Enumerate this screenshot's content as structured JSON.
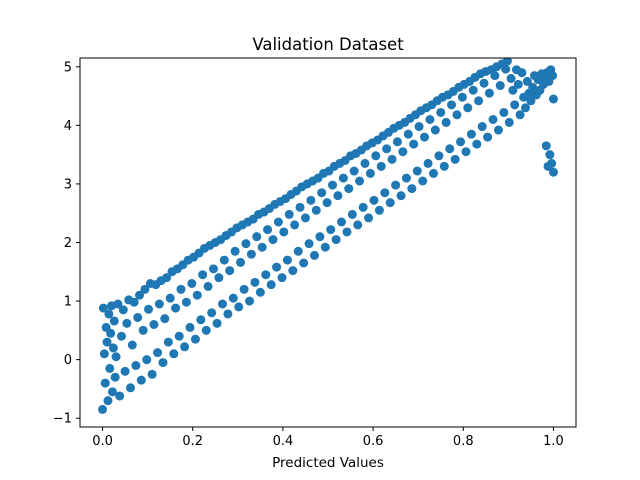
{
  "chart_data": {
    "type": "scatter",
    "title": "Validation Dataset",
    "xlabel": "Predicted Values",
    "ylabel": "",
    "xlim": [
      -0.05,
      1.05
    ],
    "ylim": [
      -1.15,
      5.15
    ],
    "xticks": [
      0.0,
      0.2,
      0.4,
      0.6,
      0.8,
      1.0
    ],
    "xtick_labels": [
      "0.0",
      "0.2",
      "0.4",
      "0.6",
      "0.8",
      "1.0"
    ],
    "yticks": [
      -1,
      0,
      1,
      2,
      3,
      4,
      5
    ],
    "ytick_labels": [
      "−1",
      "0",
      "1",
      "2",
      "3",
      "4",
      "5"
    ],
    "grid": false,
    "legend": "none",
    "series": [
      {
        "color": "#1f77b4",
        "marker": "circle",
        "approx_relation": "y ≈ 4x + noise, noise uniform in [-0.9, 0.9]",
        "approx_count": 2000,
        "points": [
          [
            0.0,
            -0.85
          ],
          [
            0.002,
            0.88
          ],
          [
            0.004,
            0.1
          ],
          [
            0.006,
            -0.4
          ],
          [
            0.008,
            0.55
          ],
          [
            0.01,
            0.3
          ],
          [
            0.012,
            -0.7
          ],
          [
            0.014,
            0.78
          ],
          [
            0.016,
            -0.15
          ],
          [
            0.018,
            0.45
          ],
          [
            0.02,
            0.92
          ],
          [
            0.022,
            -0.55
          ],
          [
            0.024,
            0.2
          ],
          [
            0.026,
            0.66
          ],
          [
            0.028,
            -0.3
          ],
          [
            0.03,
            0.05
          ],
          [
            0.034,
            0.95
          ],
          [
            0.038,
            -0.62
          ],
          [
            0.042,
            0.4
          ],
          [
            0.046,
            0.85
          ],
          [
            0.05,
            -0.2
          ],
          [
            0.054,
            0.62
          ],
          [
            0.058,
            1.02
          ],
          [
            0.062,
            -0.48
          ],
          [
            0.066,
            0.25
          ],
          [
            0.07,
            0.98
          ],
          [
            0.074,
            -0.1
          ],
          [
            0.078,
            0.72
          ],
          [
            0.082,
            1.1
          ],
          [
            0.086,
            -0.35
          ],
          [
            0.09,
            0.5
          ],
          [
            0.094,
            1.2
          ],
          [
            0.098,
            0.0
          ],
          [
            0.102,
            0.86
          ],
          [
            0.106,
            1.3
          ],
          [
            0.11,
            -0.25
          ],
          [
            0.114,
            0.6
          ],
          [
            0.118,
            1.28
          ],
          [
            0.122,
            0.12
          ],
          [
            0.126,
            0.95
          ],
          [
            0.13,
            1.35
          ],
          [
            0.134,
            -0.05
          ],
          [
            0.138,
            0.7
          ],
          [
            0.142,
            1.4
          ],
          [
            0.146,
            0.3
          ],
          [
            0.15,
            1.05
          ],
          [
            0.154,
            1.5
          ],
          [
            0.158,
            0.1
          ],
          [
            0.162,
            0.88
          ],
          [
            0.166,
            1.55
          ],
          [
            0.17,
            0.4
          ],
          [
            0.174,
            1.2
          ],
          [
            0.178,
            1.62
          ],
          [
            0.182,
            0.22
          ],
          [
            0.186,
            0.98
          ],
          [
            0.19,
            1.7
          ],
          [
            0.194,
            0.55
          ],
          [
            0.198,
            1.3
          ],
          [
            0.202,
            1.75
          ],
          [
            0.206,
            0.35
          ],
          [
            0.21,
            1.1
          ],
          [
            0.214,
            1.82
          ],
          [
            0.218,
            0.68
          ],
          [
            0.222,
            1.45
          ],
          [
            0.226,
            1.9
          ],
          [
            0.23,
            0.5
          ],
          [
            0.234,
            1.25
          ],
          [
            0.238,
            1.95
          ],
          [
            0.242,
            0.8
          ],
          [
            0.246,
            1.55
          ],
          [
            0.25,
            2.0
          ],
          [
            0.254,
            0.62
          ],
          [
            0.258,
            1.4
          ],
          [
            0.262,
            2.05
          ],
          [
            0.266,
            0.95
          ],
          [
            0.27,
            1.7
          ],
          [
            0.274,
            2.12
          ],
          [
            0.278,
            0.78
          ],
          [
            0.282,
            1.52
          ],
          [
            0.286,
            2.18
          ],
          [
            0.29,
            1.05
          ],
          [
            0.294,
            1.85
          ],
          [
            0.298,
            2.25
          ],
          [
            0.302,
            0.9
          ],
          [
            0.306,
            1.66
          ],
          [
            0.31,
            2.3
          ],
          [
            0.314,
            1.2
          ],
          [
            0.318,
            1.98
          ],
          [
            0.322,
            2.35
          ],
          [
            0.326,
            1.0
          ],
          [
            0.33,
            1.8
          ],
          [
            0.334,
            2.4
          ],
          [
            0.338,
            1.32
          ],
          [
            0.342,
            2.1
          ],
          [
            0.346,
            2.48
          ],
          [
            0.35,
            1.15
          ],
          [
            0.354,
            1.92
          ],
          [
            0.358,
            2.52
          ],
          [
            0.362,
            1.45
          ],
          [
            0.366,
            2.22
          ],
          [
            0.37,
            2.58
          ],
          [
            0.374,
            1.28
          ],
          [
            0.378,
            2.05
          ],
          [
            0.382,
            2.65
          ],
          [
            0.386,
            1.58
          ],
          [
            0.39,
            2.35
          ],
          [
            0.394,
            2.7
          ],
          [
            0.398,
            1.4
          ],
          [
            0.402,
            2.18
          ],
          [
            0.406,
            2.75
          ],
          [
            0.41,
            1.7
          ],
          [
            0.414,
            2.48
          ],
          [
            0.418,
            2.82
          ],
          [
            0.422,
            1.52
          ],
          [
            0.426,
            2.3
          ],
          [
            0.43,
            2.88
          ],
          [
            0.434,
            1.85
          ],
          [
            0.438,
            2.6
          ],
          [
            0.442,
            2.95
          ],
          [
            0.446,
            1.65
          ],
          [
            0.45,
            2.42
          ],
          [
            0.454,
            3.0
          ],
          [
            0.458,
            1.98
          ],
          [
            0.462,
            2.72
          ],
          [
            0.466,
            3.05
          ],
          [
            0.47,
            1.78
          ],
          [
            0.474,
            2.55
          ],
          [
            0.478,
            3.1
          ],
          [
            0.482,
            2.1
          ],
          [
            0.486,
            2.85
          ],
          [
            0.49,
            3.18
          ],
          [
            0.494,
            1.92
          ],
          [
            0.498,
            2.68
          ],
          [
            0.502,
            3.22
          ],
          [
            0.506,
            2.22
          ],
          [
            0.51,
            2.98
          ],
          [
            0.514,
            3.3
          ],
          [
            0.518,
            2.05
          ],
          [
            0.522,
            2.8
          ],
          [
            0.526,
            3.35
          ],
          [
            0.53,
            2.35
          ],
          [
            0.534,
            3.1
          ],
          [
            0.538,
            3.4
          ],
          [
            0.542,
            2.18
          ],
          [
            0.546,
            2.92
          ],
          [
            0.55,
            3.48
          ],
          [
            0.554,
            2.48
          ],
          [
            0.558,
            3.22
          ],
          [
            0.562,
            3.52
          ],
          [
            0.566,
            2.3
          ],
          [
            0.57,
            3.05
          ],
          [
            0.574,
            3.58
          ],
          [
            0.578,
            2.6
          ],
          [
            0.582,
            3.35
          ],
          [
            0.586,
            3.65
          ],
          [
            0.59,
            2.42
          ],
          [
            0.594,
            3.18
          ],
          [
            0.598,
            3.7
          ],
          [
            0.602,
            2.72
          ],
          [
            0.606,
            3.48
          ],
          [
            0.61,
            3.75
          ],
          [
            0.614,
            2.55
          ],
          [
            0.618,
            3.3
          ],
          [
            0.622,
            3.82
          ],
          [
            0.626,
            2.85
          ],
          [
            0.63,
            3.6
          ],
          [
            0.634,
            3.88
          ],
          [
            0.638,
            2.68
          ],
          [
            0.642,
            3.42
          ],
          [
            0.646,
            3.95
          ],
          [
            0.65,
            2.98
          ],
          [
            0.654,
            3.72
          ],
          [
            0.658,
            4.0
          ],
          [
            0.662,
            2.8
          ],
          [
            0.666,
            3.55
          ],
          [
            0.67,
            4.05
          ],
          [
            0.674,
            3.1
          ],
          [
            0.678,
            3.85
          ],
          [
            0.682,
            4.12
          ],
          [
            0.686,
            2.92
          ],
          [
            0.69,
            3.68
          ],
          [
            0.694,
            4.18
          ],
          [
            0.698,
            3.22
          ],
          [
            0.702,
            3.98
          ],
          [
            0.706,
            4.25
          ],
          [
            0.71,
            3.05
          ],
          [
            0.714,
            3.8
          ],
          [
            0.718,
            4.3
          ],
          [
            0.722,
            3.35
          ],
          [
            0.726,
            4.1
          ],
          [
            0.73,
            4.35
          ],
          [
            0.734,
            3.18
          ],
          [
            0.738,
            3.92
          ],
          [
            0.742,
            4.42
          ],
          [
            0.746,
            3.48
          ],
          [
            0.75,
            4.22
          ],
          [
            0.754,
            4.48
          ],
          [
            0.758,
            3.3
          ],
          [
            0.762,
            4.05
          ],
          [
            0.766,
            4.52
          ],
          [
            0.77,
            3.6
          ],
          [
            0.774,
            4.35
          ],
          [
            0.778,
            4.58
          ],
          [
            0.782,
            3.42
          ],
          [
            0.786,
            4.18
          ],
          [
            0.79,
            4.65
          ],
          [
            0.794,
            3.72
          ],
          [
            0.798,
            4.48
          ],
          [
            0.802,
            4.7
          ],
          [
            0.806,
            3.55
          ],
          [
            0.81,
            4.3
          ],
          [
            0.814,
            4.75
          ],
          [
            0.818,
            3.85
          ],
          [
            0.822,
            4.6
          ],
          [
            0.826,
            4.82
          ],
          [
            0.83,
            3.68
          ],
          [
            0.834,
            4.42
          ],
          [
            0.838,
            4.88
          ],
          [
            0.842,
            3.98
          ],
          [
            0.846,
            4.72
          ],
          [
            0.85,
            4.92
          ],
          [
            0.854,
            3.8
          ],
          [
            0.858,
            4.55
          ],
          [
            0.862,
            4.95
          ],
          [
            0.866,
            4.1
          ],
          [
            0.87,
            4.85
          ],
          [
            0.874,
            5.0
          ],
          [
            0.878,
            3.92
          ],
          [
            0.882,
            4.68
          ],
          [
            0.886,
            5.05
          ],
          [
            0.89,
            4.22
          ],
          [
            0.894,
            4.96
          ],
          [
            0.898,
            5.1
          ],
          [
            0.902,
            4.05
          ],
          [
            0.906,
            4.8
          ],
          [
            0.91,
            4.6
          ],
          [
            0.914,
            4.35
          ],
          [
            0.918,
            4.95
          ],
          [
            0.922,
            4.7
          ],
          [
            0.926,
            4.18
          ],
          [
            0.93,
            4.9
          ],
          [
            0.934,
            4.48
          ],
          [
            0.938,
            4.3
          ],
          [
            0.942,
            4.75
          ],
          [
            0.946,
            4.55
          ],
          [
            0.95,
            4.42
          ],
          [
            0.954,
            4.65
          ],
          [
            0.958,
            4.85
          ],
          [
            0.962,
            4.52
          ],
          [
            0.966,
            4.78
          ],
          [
            0.97,
            4.6
          ],
          [
            0.974,
            4.88
          ],
          [
            0.978,
            4.7
          ],
          [
            0.982,
            4.82
          ],
          [
            0.986,
            4.9
          ],
          [
            0.99,
            4.75
          ],
          [
            0.994,
            4.95
          ],
          [
            0.998,
            4.85
          ],
          [
            1.0,
            4.45
          ],
          [
            1.0,
            3.2
          ],
          [
            0.996,
            3.35
          ],
          [
            0.992,
            3.5
          ],
          [
            0.988,
            3.3
          ],
          [
            0.984,
            3.65
          ]
        ]
      }
    ]
  }
}
